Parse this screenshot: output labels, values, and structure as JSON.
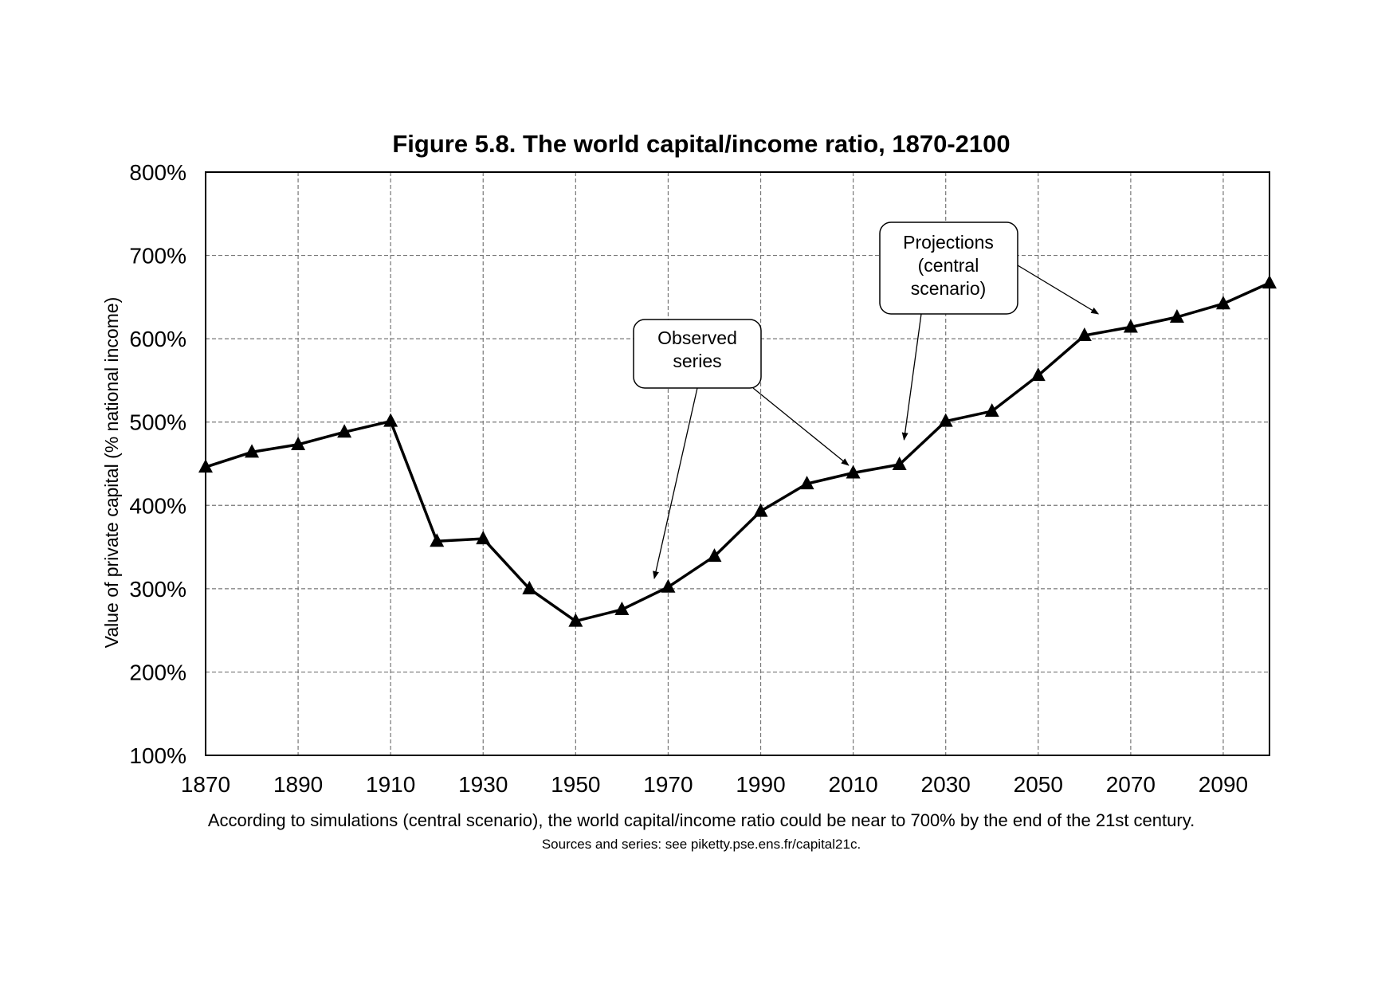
{
  "chart_data": {
    "type": "line",
    "title": "Figure 5.8. The world capital/income ratio, 1870-2100",
    "ylabel": "Value of private capital (% national income)",
    "xlabel": "",
    "xlim": [
      1870,
      2100
    ],
    "ylim": [
      100,
      800
    ],
    "x_ticks": [
      1870,
      1890,
      1910,
      1930,
      1950,
      1970,
      1990,
      2010,
      2030,
      2050,
      2070,
      2090
    ],
    "x_tick_labels": [
      "1870",
      "1890",
      "1910",
      "1930",
      "1950",
      "1970",
      "1990",
      "2010",
      "2030",
      "2050",
      "2070",
      "2090"
    ],
    "y_ticks": [
      100,
      200,
      300,
      400,
      500,
      600,
      700,
      800
    ],
    "y_tick_labels": [
      "100%",
      "200%",
      "300%",
      "400%",
      "500%",
      "600%",
      "700%",
      "800%"
    ],
    "grid": true,
    "series": [
      {
        "name": "World capital/income ratio",
        "marker": "triangle",
        "x": [
          1870,
          1880,
          1890,
          1900,
          1910,
          1920,
          1930,
          1940,
          1950,
          1960,
          1970,
          1980,
          1990,
          2000,
          2010,
          2020,
          2030,
          2040,
          2050,
          2060,
          2070,
          2080,
          2090,
          2100
        ],
        "values": [
          446,
          464,
          473,
          488,
          501,
          357,
          360,
          300,
          261,
          275,
          302,
          339,
          393,
          426,
          439,
          449,
          501,
          513,
          556,
          604,
          614,
          626,
          642,
          667
        ]
      }
    ],
    "annotations": [
      {
        "name": "observed-series",
        "text_lines": [
          "Observed",
          "series"
        ],
        "arrow_targets_x": [
          1967,
          2009
        ]
      },
      {
        "name": "projections",
        "text_lines": [
          "Projections",
          "(central",
          "scenario)"
        ],
        "arrow_targets_x": [
          2021,
          2063
        ]
      }
    ]
  },
  "caption": {
    "main": "According to simulations (central scenario), the world capital/income ratio could be near to 700% by the end of the 21st century.",
    "source": "Sources and series: see piketty.pse.ens.fr/capital21c."
  }
}
